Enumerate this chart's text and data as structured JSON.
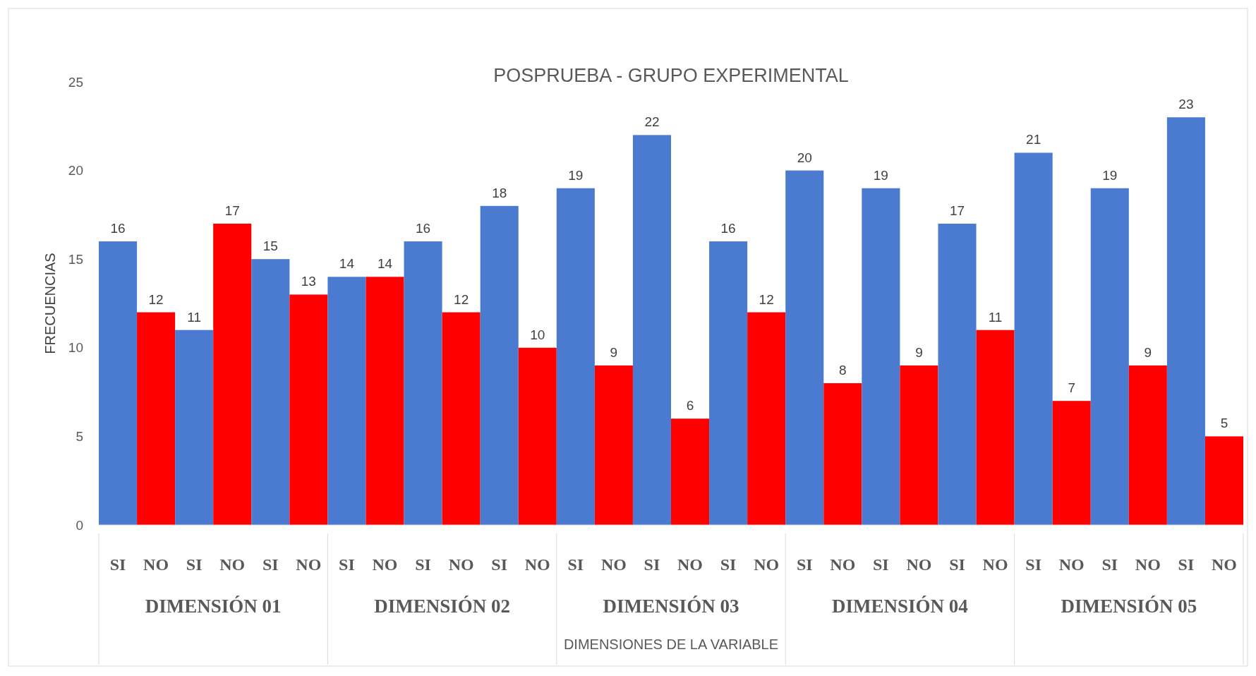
{
  "chart_data": {
    "type": "bar",
    "title": "POSPRUEBA - GRUPO EXPERIMENTAL",
    "xlabel": "DIMENSIONES DE LA VARIABLE",
    "ylabel": "FRECUENCIAS",
    "categories": [
      "SI",
      "NO",
      "SI",
      "NO",
      "SI",
      "NO",
      "SI",
      "NO",
      "SI",
      "NO",
      "SI",
      "NO",
      "SI",
      "NO",
      "SI",
      "NO",
      "SI",
      "NO",
      "SI",
      "NO",
      "SI",
      "NO",
      "SI",
      "NO",
      "SI",
      "NO",
      "SI",
      "NO",
      "SI",
      "NO"
    ],
    "values": [
      16,
      12,
      11,
      17,
      15,
      13,
      14,
      14,
      16,
      12,
      18,
      10,
      19,
      9,
      22,
      6,
      16,
      12,
      20,
      8,
      19,
      9,
      17,
      11,
      21,
      7,
      19,
      9,
      23,
      5
    ],
    "colors": [
      "#4a7bd0",
      "#ff0000",
      "#4a7bd0",
      "#ff0000",
      "#4a7bd0",
      "#ff0000",
      "#4a7bd0",
      "#ff0000",
      "#4a7bd0",
      "#ff0000",
      "#4a7bd0",
      "#ff0000",
      "#4a7bd0",
      "#ff0000",
      "#4a7bd0",
      "#ff0000",
      "#4a7bd0",
      "#ff0000",
      "#4a7bd0",
      "#ff0000",
      "#4a7bd0",
      "#ff0000",
      "#4a7bd0",
      "#ff0000",
      "#4a7bd0",
      "#ff0000",
      "#4a7bd0",
      "#ff0000",
      "#4a7bd0",
      "#ff0000"
    ],
    "annotations": [
      "DIMENSIÓN 01",
      "DIMENSIÓN 02",
      "DIMENSIÓN 03",
      "DIMENSIÓN 04",
      "DIMENSIÓN 05"
    ],
    "ylim": [
      0,
      25
    ],
    "yticks": [
      0,
      5,
      10,
      15,
      20,
      25
    ],
    "data_labels": true,
    "grid": false
  }
}
